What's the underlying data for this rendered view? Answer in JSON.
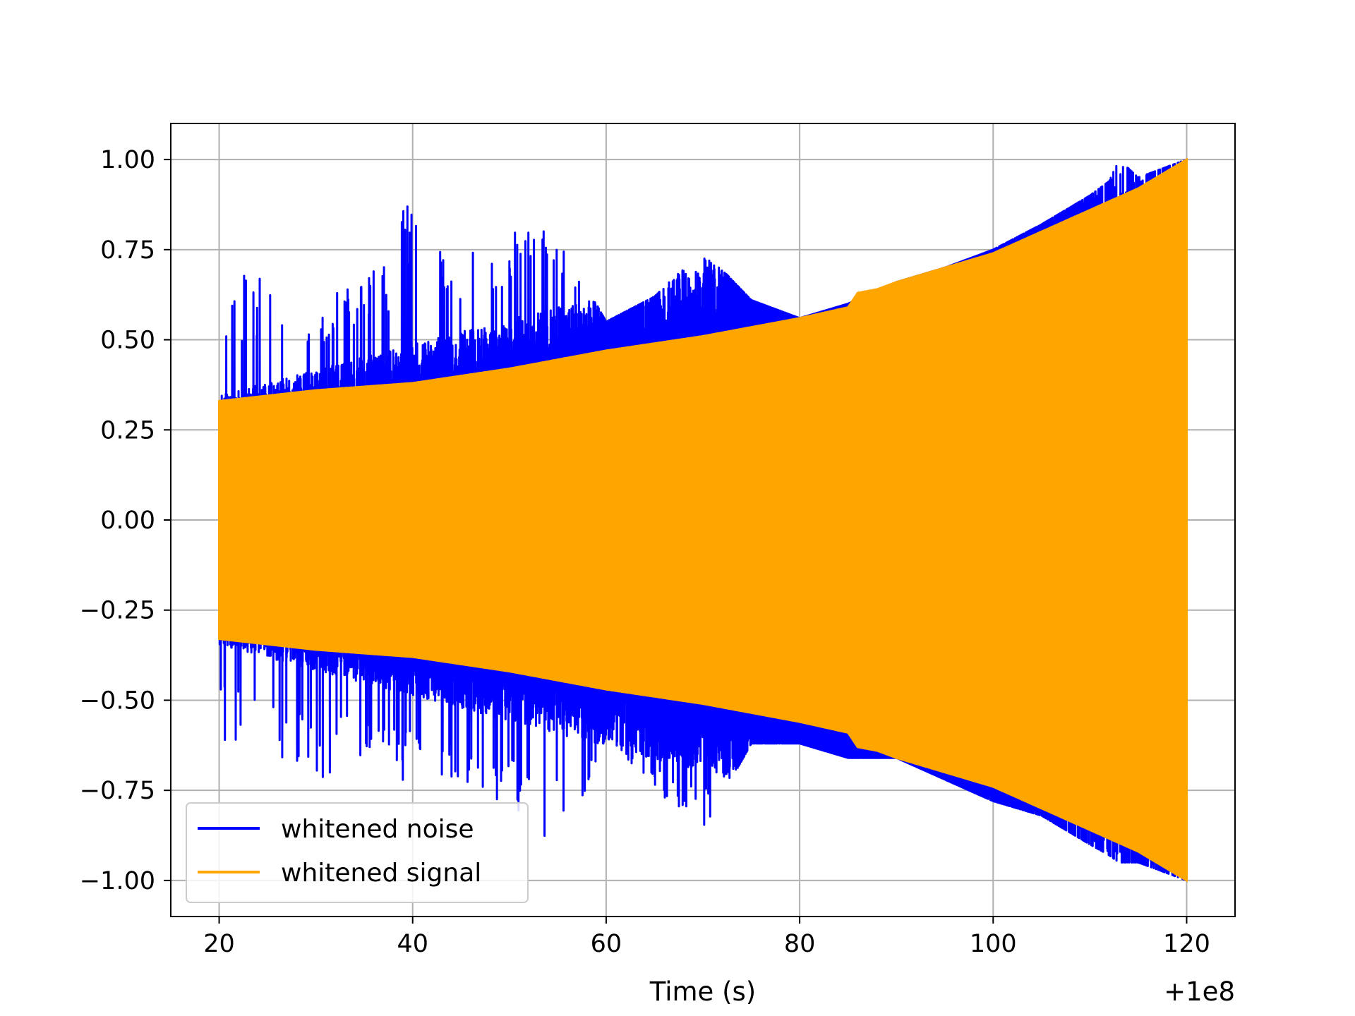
{
  "chart_data": {
    "type": "line",
    "title": "",
    "xlabel": "Time (s)",
    "ylabel": "",
    "x_offset_label": "+1e8",
    "xlim": [
      15,
      125
    ],
    "ylim": [
      -1.1,
      1.1
    ],
    "x_ticks": [
      20,
      40,
      60,
      80,
      100,
      120
    ],
    "x_tick_labels": [
      "20",
      "40",
      "60",
      "80",
      "100",
      "120"
    ],
    "y_ticks": [
      1.0,
      0.75,
      0.5,
      0.25,
      0.0,
      -0.25,
      -0.5,
      -0.75,
      -1.0
    ],
    "y_tick_labels": [
      "1.00",
      "0.75",
      "0.50",
      "0.25",
      "0.00",
      "−0.25",
      "−0.50",
      "−0.75",
      "−1.00"
    ],
    "grid": true,
    "legend_position": "lower-left",
    "series": [
      {
        "name": "whitened noise",
        "color": "#0000ff",
        "x_range": [
          20,
          120
        ],
        "envelope_x": [
          20,
          25,
          30,
          35,
          38,
          40,
          45,
          50,
          53,
          55,
          60,
          65,
          70,
          75,
          80,
          85,
          90,
          95,
          100,
          105,
          110,
          112,
          113,
          115,
          120
        ],
        "envelope_max": [
          0.62,
          0.74,
          0.62,
          0.65,
          0.8,
          0.91,
          0.74,
          0.8,
          0.85,
          0.79,
          0.55,
          0.62,
          0.75,
          0.61,
          0.56,
          0.6,
          0.66,
          0.7,
          0.75,
          0.82,
          0.9,
          0.94,
          1.0,
          0.95,
          1.0
        ],
        "envelope_min": [
          -0.62,
          -0.64,
          -0.75,
          -0.7,
          -0.78,
          -0.72,
          -0.72,
          -0.8,
          -0.92,
          -0.95,
          -0.6,
          -0.75,
          -0.86,
          -0.62,
          -0.62,
          -0.66,
          -0.66,
          -0.72,
          -0.78,
          -0.82,
          -0.9,
          -0.93,
          -0.95,
          -0.95,
          -1.0
        ]
      },
      {
        "name": "whitened signal",
        "color": "#ffa500",
        "x_range": [
          20,
          120
        ],
        "amplitude_x": [
          20,
          30,
          40,
          50,
          60,
          70,
          80,
          85,
          86,
          88,
          90,
          100,
          110,
          115,
          120
        ],
        "amplitude": [
          0.33,
          0.36,
          0.38,
          0.42,
          0.47,
          0.51,
          0.56,
          0.59,
          0.63,
          0.64,
          0.66,
          0.74,
          0.86,
          0.92,
          1.0
        ]
      }
    ]
  }
}
